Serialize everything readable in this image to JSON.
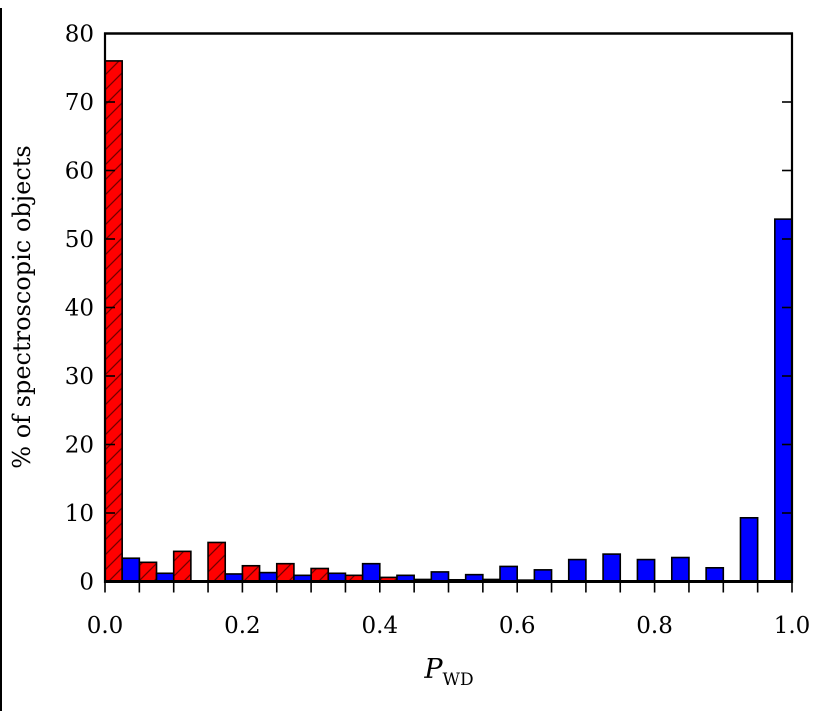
{
  "figure": {
    "xlabel_main": "P",
    "xlabel_sub": "WD"
  },
  "chart_data": {
    "type": "bar",
    "title": "",
    "xlabel": "P_WD",
    "ylabel": "% of spectroscopic objects",
    "xlim": [
      0.0,
      1.0
    ],
    "ylim": [
      0,
      80
    ],
    "grid": false,
    "legend": null,
    "x_tick_values": [
      0.0,
      0.2,
      0.4,
      0.6,
      0.8,
      1.0
    ],
    "x_tick_labels": [
      "0.0",
      "0.2",
      "0.4",
      "0.6",
      "0.8",
      "1.0"
    ],
    "x_minor_tick_step": 0.05,
    "y_tick_values": [
      0,
      10,
      20,
      30,
      40,
      50,
      60,
      70,
      80
    ],
    "y_tick_labels": [
      "0",
      "10",
      "20",
      "30",
      "40",
      "50",
      "60",
      "70",
      "80"
    ],
    "bin_width": 0.05,
    "bar_width": 0.025,
    "bin_starts": [
      0.0,
      0.05,
      0.1,
      0.15,
      0.2,
      0.25,
      0.3,
      0.35,
      0.4,
      0.45,
      0.5,
      0.55,
      0.6,
      0.65,
      0.7,
      0.75,
      0.8,
      0.85,
      0.9,
      0.95
    ],
    "series": [
      {
        "name": "red-hatched",
        "color": "#ff0000",
        "hatch": "/",
        "sub_bar_offset": 0.0,
        "values": [
          76.0,
          2.8,
          4.4,
          5.7,
          2.3,
          2.6,
          1.9,
          0.9,
          0.6,
          0.3,
          0.25,
          0.3,
          0.2,
          0.1,
          0.05,
          0,
          0,
          0,
          0,
          0
        ]
      },
      {
        "name": "blue",
        "color": "#0000ff",
        "hatch": null,
        "sub_bar_offset": 0.025,
        "values": [
          3.4,
          1.2,
          0,
          1.1,
          1.3,
          0.9,
          1.2,
          2.6,
          0.9,
          1.4,
          1.0,
          2.2,
          1.7,
          3.2,
          4.0,
          3.2,
          3.5,
          2.0,
          9.3,
          52.9
        ]
      }
    ],
    "edge_color": "#000000",
    "background_color": "#ffffff"
  }
}
